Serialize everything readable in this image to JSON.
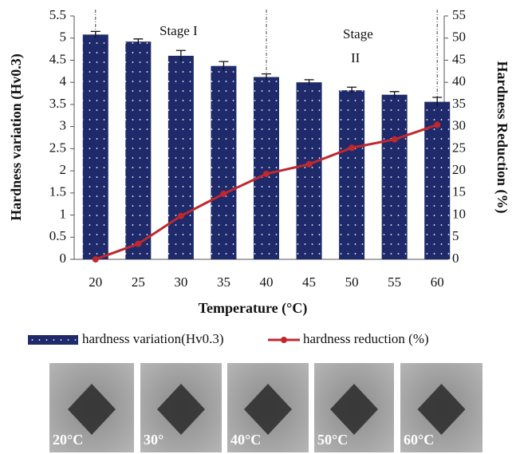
{
  "chart_data": {
    "type": "bar_line",
    "xlabel": "Temperature (°C)",
    "ylabel": "Hardness variation (Hv0.3)",
    "y2label": "Hardness Reduction (%)",
    "categories": [
      "20",
      "25",
      "30",
      "35",
      "40",
      "45",
      "50",
      "55",
      "60"
    ],
    "series": [
      {
        "name": "hardness variation(Hv0.3)",
        "color": "#1f2a6b",
        "kind": "bar",
        "values": [
          5.08,
          4.92,
          4.6,
          4.37,
          4.12,
          4.0,
          3.82,
          3.72,
          3.56
        ],
        "errors": [
          0.07,
          0.06,
          0.12,
          0.1,
          0.07,
          0.06,
          0.07,
          0.07,
          0.1
        ]
      },
      {
        "name": "hardness reduction (%)",
        "color": "#c0282d",
        "kind": "line",
        "axis": "y2",
        "values": [
          0,
          3.5,
          9.8,
          14.8,
          19.3,
          21.5,
          25.2,
          27.1,
          30.4
        ]
      }
    ],
    "ylim": [
      0,
      5.5
    ],
    "yticks": [
      0,
      0.5,
      1,
      1.5,
      2,
      2.5,
      3,
      3.5,
      4,
      4.5,
      5,
      5.5
    ],
    "y2lim": [
      0,
      55
    ],
    "y2ticks": [
      0,
      5,
      10,
      15,
      20,
      25,
      30,
      35,
      40,
      45,
      50,
      55
    ],
    "annotations": [
      "Stage I",
      "Stage",
      "II"
    ],
    "legend": "bottom"
  },
  "images": [
    "20°C",
    "30°",
    "40°C",
    "50°C",
    "60°C"
  ]
}
